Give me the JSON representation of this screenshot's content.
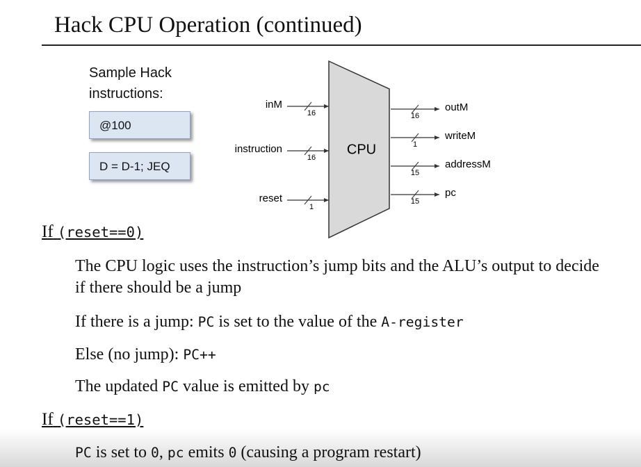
{
  "title": "Hack CPU Operation (continued)",
  "sample": {
    "label": "Sample Hack instructions:",
    "instructions": [
      "@100",
      "D = D-1; JEQ"
    ]
  },
  "cpu": {
    "label": "CPU",
    "inputs": [
      {
        "name": "inM",
        "width": 16
      },
      {
        "name": "instruction",
        "width": 16
      },
      {
        "name": "reset",
        "width": 1
      }
    ],
    "outputs": [
      {
        "name": "outM",
        "width": 16
      },
      {
        "name": "writeM",
        "width": 1
      },
      {
        "name": "addressM",
        "width": 15
      },
      {
        "name": "pc",
        "width": 15
      }
    ]
  },
  "sections": [
    {
      "heading": [
        "If",
        "(reset==0)"
      ],
      "items": [
        [
          "The CPU logic uses the instruction’s jump bits and the ALU’s output to decide if there should be a jump"
        ],
        [
          "If there is a jump:",
          "PC",
          "is set to the value of the",
          "A-register"
        ],
        [
          "Else (no jump):",
          "PC++"
        ],
        [
          "The updated",
          "PC",
          "value is emitted by",
          "pc"
        ]
      ]
    },
    {
      "heading": [
        "If",
        "(reset==1)"
      ],
      "items": [
        [
          "PC",
          "is set to",
          "0",
          ",",
          "pc",
          "emits",
          "0",
          "(causing a program restart)"
        ]
      ]
    }
  ]
}
